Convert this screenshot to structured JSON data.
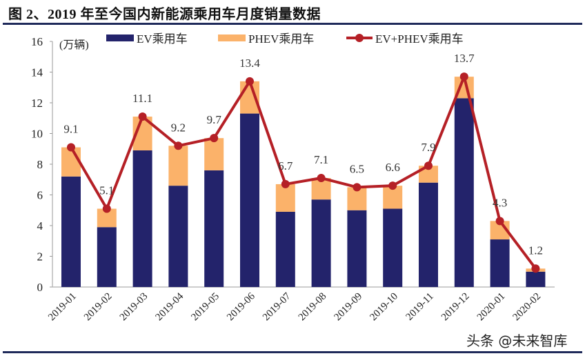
{
  "title": "图 2、2019 年至今国内新能源乘用车月度销量数据",
  "watermark": "头条 @未来智库",
  "chart_data": {
    "type": "bar",
    "stacked": true,
    "unit_label": "(万辆)",
    "categories": [
      "2019-01",
      "2019-02",
      "2019-03",
      "2019-04",
      "2019-05",
      "2019-06",
      "2019-07",
      "2019-08",
      "2019-09",
      "2019-10",
      "2019-11",
      "2019-12",
      "2020-01",
      "2020-02"
    ],
    "series": [
      {
        "name": "EV乘用车",
        "kind": "bar",
        "color": "#23236b",
        "values": [
          7.2,
          3.9,
          8.9,
          6.6,
          7.6,
          11.3,
          4.9,
          5.7,
          5.0,
          5.1,
          6.8,
          12.3,
          3.1,
          1.0
        ]
      },
      {
        "name": "PHEV乘用车",
        "kind": "bar",
        "color": "#fbb26a",
        "values": [
          1.9,
          1.2,
          2.2,
          2.6,
          2.1,
          2.1,
          1.8,
          1.4,
          1.5,
          1.5,
          1.1,
          1.4,
          1.2,
          0.2
        ]
      },
      {
        "name": "EV+PHEV乘用车",
        "kind": "line",
        "color": "#b52026",
        "values": [
          9.1,
          5.1,
          11.1,
          9.2,
          9.7,
          13.4,
          6.7,
          7.1,
          6.5,
          6.6,
          7.9,
          13.7,
          4.3,
          1.2
        ]
      }
    ],
    "data_labels": [
      "9.1",
      "5.1",
      "11.1",
      "9.2",
      "9.7",
      "13.4",
      "6.7",
      "7.1",
      "6.5",
      "6.6",
      "7.9",
      "13.7",
      "4.3",
      "1.2"
    ],
    "ylim": [
      0,
      16
    ],
    "yticks": [
      "0",
      "2",
      "4",
      "6",
      "8",
      "10",
      "12",
      "14",
      "16"
    ],
    "grid": false,
    "legend_position": "top"
  }
}
